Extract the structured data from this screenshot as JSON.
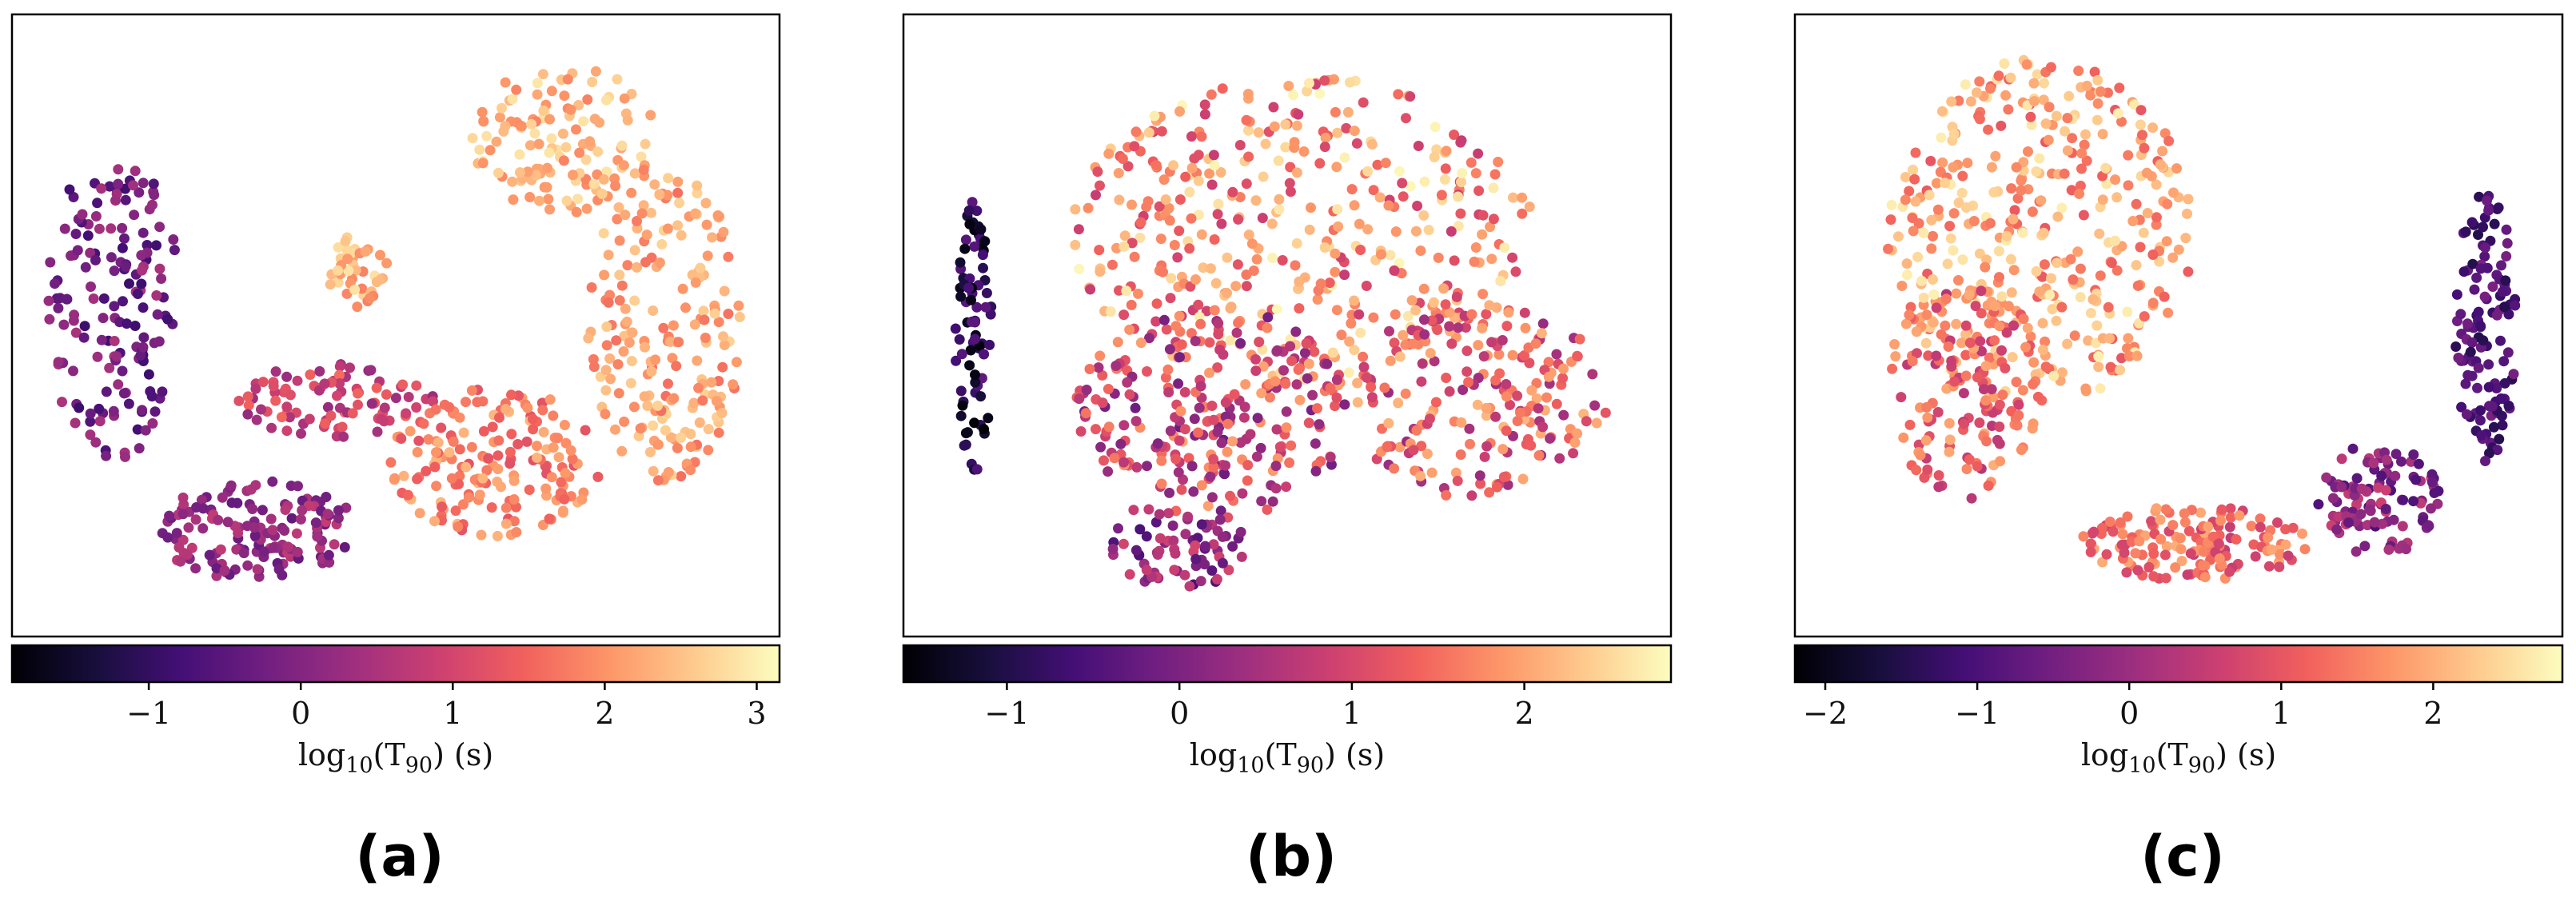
{
  "colormap": {
    "name": "magma",
    "stops": [
      "#000004",
      "#180f3d",
      "#440f76",
      "#721f81",
      "#9e2f7f",
      "#cd4071",
      "#f1605d",
      "#fd9668",
      "#feca8d",
      "#fcfdbf"
    ]
  },
  "panels": [
    {
      "id": "a",
      "label": "(a)"
    },
    {
      "id": "b",
      "label": "(b)"
    },
    {
      "id": "c",
      "label": "(c)"
    }
  ],
  "chart_data": [
    {
      "type": "scatter",
      "panel": "(a)",
      "xticks": false,
      "yticks": false,
      "colorbar": {
        "label": "log10(T90) (s)",
        "label_main": "log",
        "label_sub": "10",
        "label_mid": "(T",
        "label_sub2": "90",
        "label_end": ") (s)",
        "range": [
          -1.9,
          3.15
        ],
        "ticks": [
          -1,
          0,
          1,
          2,
          3
        ],
        "tick_labels": [
          "−1",
          "0",
          "1",
          "2",
          "3"
        ]
      },
      "clusters": [
        {
          "cx": 0.13,
          "cy": 0.47,
          "rx": 0.09,
          "ry": 0.25,
          "c": [
            -0.9,
            0.5
          ],
          "n": 160
        },
        {
          "cx": 0.32,
          "cy": 0.83,
          "rx": 0.13,
          "ry": 0.08,
          "c": [
            -0.4,
            0.8
          ],
          "n": 150
        },
        {
          "cx": 0.42,
          "cy": 0.62,
          "rx": 0.13,
          "ry": 0.06,
          "c": [
            0.2,
            1.6
          ],
          "n": 90
        },
        {
          "cx": 0.63,
          "cy": 0.72,
          "rx": 0.14,
          "ry": 0.12,
          "c": [
            1.2,
            2.4
          ],
          "n": 180
        },
        {
          "cx": 0.85,
          "cy": 0.5,
          "rx": 0.1,
          "ry": 0.25,
          "c": [
            1.6,
            2.7
          ],
          "n": 200
        },
        {
          "cx": 0.72,
          "cy": 0.2,
          "rx": 0.12,
          "ry": 0.12,
          "c": [
            1.8,
            2.9
          ],
          "n": 130
        },
        {
          "cx": 0.45,
          "cy": 0.41,
          "rx": 0.04,
          "ry": 0.06,
          "c": [
            1.8,
            2.9
          ],
          "n": 40
        }
      ]
    },
    {
      "type": "scatter",
      "panel": "(b)",
      "xticks": false,
      "yticks": false,
      "colorbar": {
        "label": "log10(T90) (s)",
        "label_main": "log",
        "label_sub": "10",
        "label_mid": "(T",
        "label_sub2": "90",
        "label_end": ") (s)",
        "range": [
          -1.6,
          2.85
        ],
        "ticks": [
          -1,
          0,
          1,
          2
        ],
        "tick_labels": [
          "−1",
          "0",
          "1",
          "2"
        ]
      },
      "clusters": [
        {
          "cx": 0.09,
          "cy": 0.52,
          "rx": 0.025,
          "ry": 0.22,
          "c": [
            -1.6,
            -0.3
          ],
          "n": 80
        },
        {
          "cx": 0.52,
          "cy": 0.35,
          "rx": 0.3,
          "ry": 0.25,
          "c": [
            0.8,
            2.8
          ],
          "n": 420
        },
        {
          "cx": 0.4,
          "cy": 0.65,
          "rx": 0.18,
          "ry": 0.18,
          "c": [
            -0.2,
            2.0
          ],
          "n": 250
        },
        {
          "cx": 0.75,
          "cy": 0.62,
          "rx": 0.17,
          "ry": 0.16,
          "c": [
            0.3,
            2.2
          ],
          "n": 200
        },
        {
          "cx": 0.36,
          "cy": 0.86,
          "rx": 0.1,
          "ry": 0.06,
          "c": [
            -0.6,
            1.0
          ],
          "n": 70
        }
      ]
    },
    {
      "type": "scatter",
      "panel": "(c)",
      "xticks": false,
      "yticks": false,
      "colorbar": {
        "label": "log10(T90) (s)",
        "label_main": "log",
        "label_sub": "10",
        "label_mid": "(T",
        "label_sub2": "90",
        "label_end": ") (s)",
        "range": [
          -2.2,
          2.85
        ],
        "ticks": [
          -2,
          -1,
          0,
          1,
          2
        ],
        "tick_labels": [
          "−2",
          "−1",
          "0",
          "1",
          "2"
        ]
      },
      "clusters": [
        {
          "cx": 0.32,
          "cy": 0.35,
          "rx": 0.2,
          "ry": 0.28,
          "c": [
            1.0,
            2.7
          ],
          "n": 400
        },
        {
          "cx": 0.22,
          "cy": 0.6,
          "rx": 0.1,
          "ry": 0.18,
          "c": [
            0.3,
            2.0
          ],
          "n": 150
        },
        {
          "cx": 0.52,
          "cy": 0.85,
          "rx": 0.15,
          "ry": 0.06,
          "c": [
            0.5,
            2.0
          ],
          "n": 150
        },
        {
          "cx": 0.76,
          "cy": 0.78,
          "rx": 0.08,
          "ry": 0.09,
          "c": [
            -1.0,
            0.6
          ],
          "n": 110
        },
        {
          "cx": 0.9,
          "cy": 0.5,
          "rx": 0.04,
          "ry": 0.22,
          "c": [
            -1.5,
            -0.4
          ],
          "n": 120
        }
      ]
    }
  ]
}
